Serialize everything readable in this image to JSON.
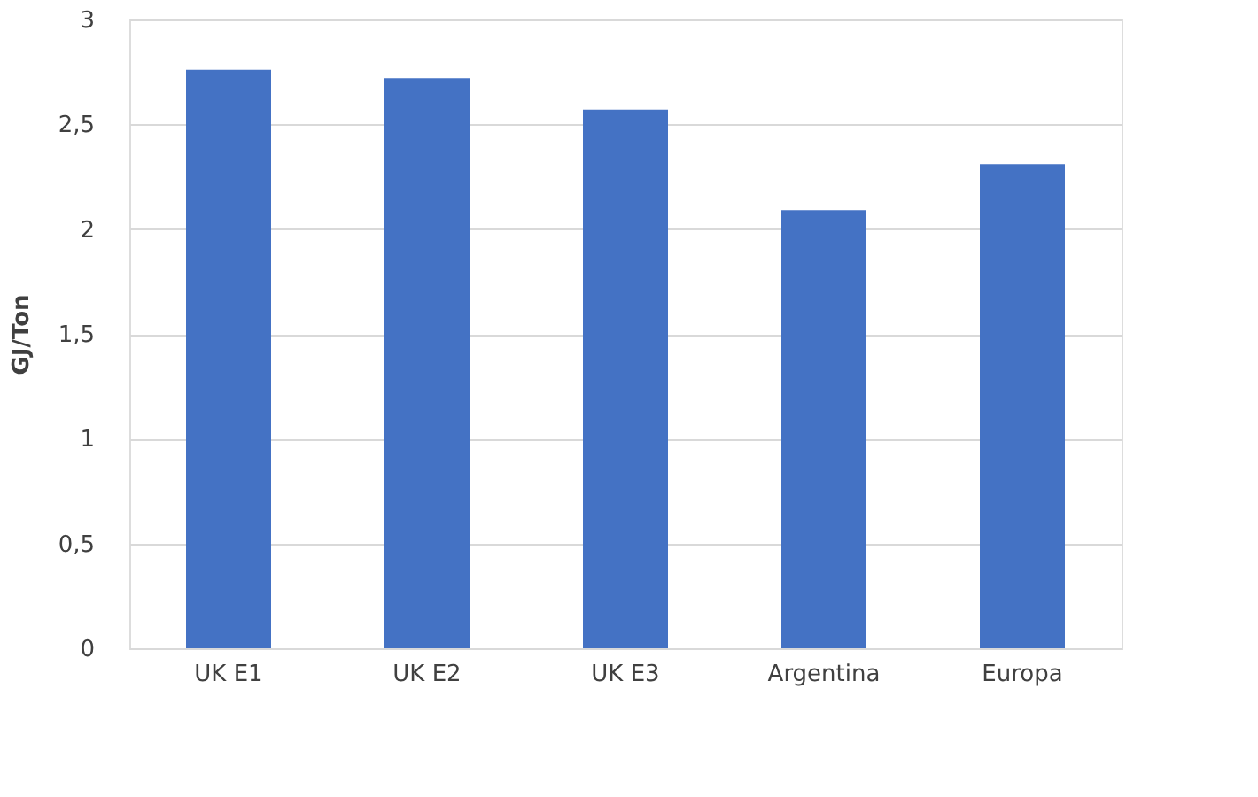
{
  "chart_data": {
    "type": "bar",
    "ylabel": "GJ/Ton",
    "categories": [
      "UK E1",
      "UK E2",
      "UK E3",
      "Argentina",
      "Europa"
    ],
    "values": [
      2.76,
      2.72,
      2.57,
      2.09,
      2.31
    ],
    "color": "#4472c4",
    "ylim": [
      0,
      3
    ],
    "yticks": [
      0,
      {
        "value": 0.5,
        "label": "0,5"
      },
      1,
      {
        "value": 1.5,
        "label": "1,5"
      },
      2,
      {
        "value": 2.5,
        "label": "2,5"
      },
      3
    ],
    "grid": "y"
  }
}
